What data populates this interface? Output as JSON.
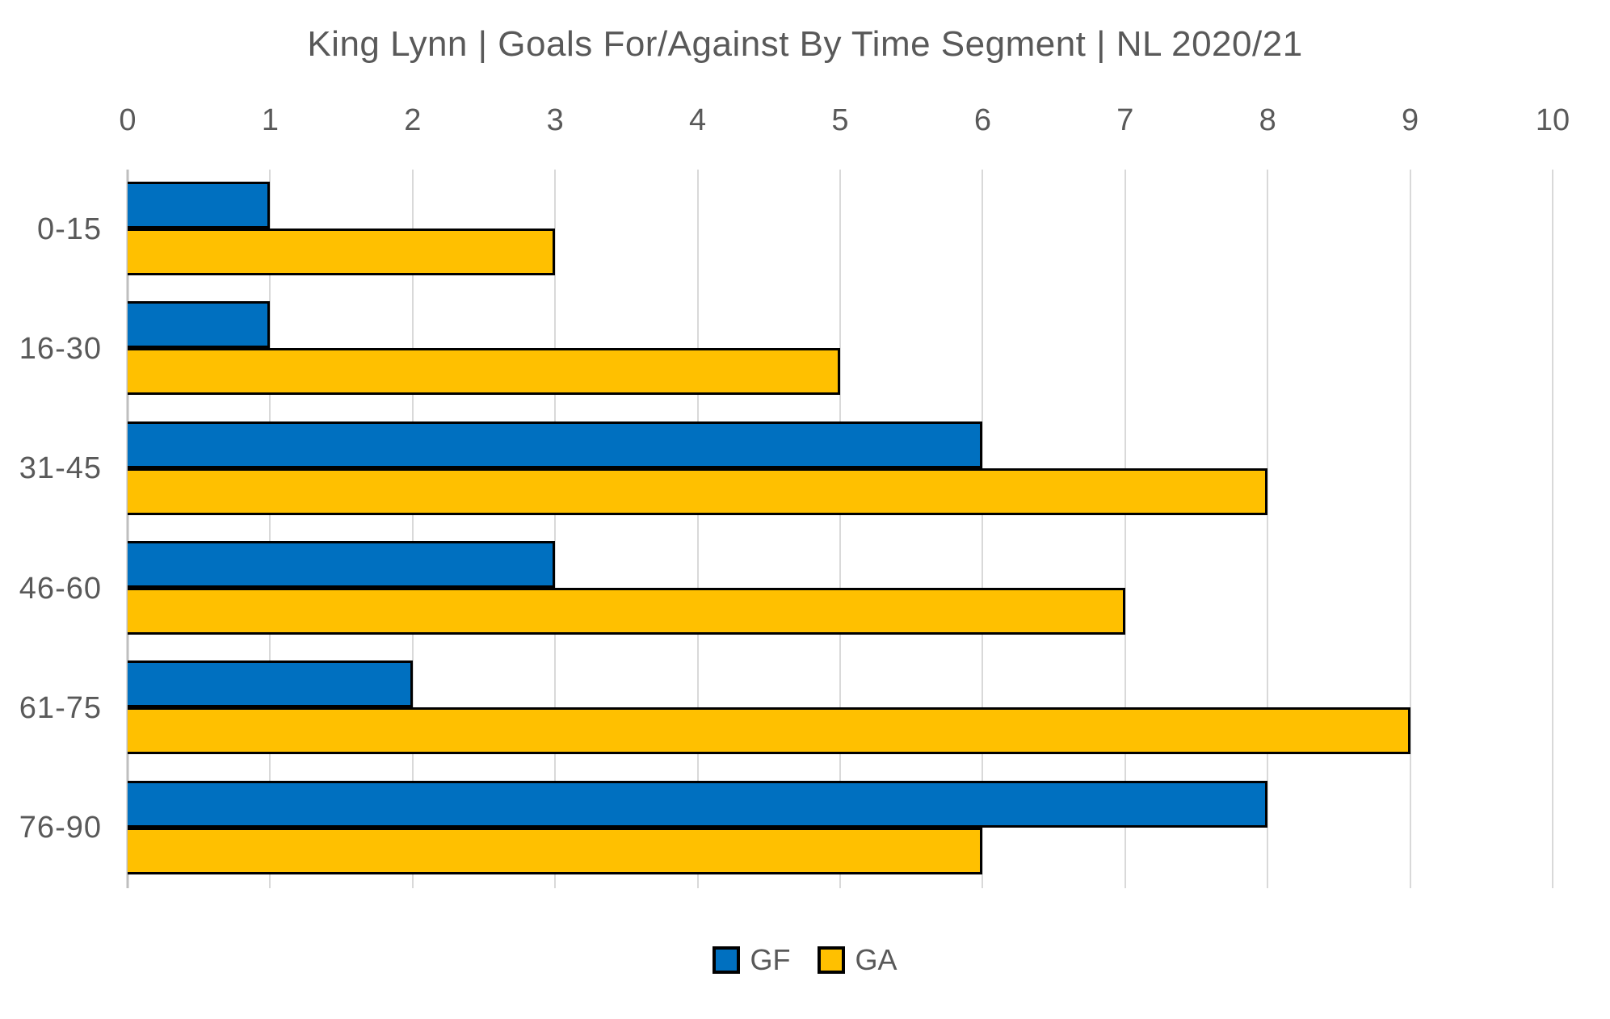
{
  "title": "King Lynn | Goals For/Against By Time Segment | NL 2020/21",
  "chart_data": {
    "type": "bar",
    "orientation": "horizontal",
    "title": "King Lynn | Goals For/Against By Time Segment | NL 2020/21",
    "categories": [
      "0-15",
      "16-30",
      "31-45",
      "46-60",
      "61-75",
      "76-90"
    ],
    "series": [
      {
        "name": "GF",
        "color": "#0070C0",
        "values": [
          1,
          1,
          6,
          3,
          2,
          8
        ]
      },
      {
        "name": "GA",
        "color": "#FFC000",
        "values": [
          3,
          5,
          8,
          7,
          9,
          6
        ]
      }
    ],
    "xlim": [
      0,
      10
    ],
    "xticks": [
      "0",
      "1",
      "2",
      "3",
      "4",
      "5",
      "6",
      "7",
      "8",
      "9",
      "10"
    ],
    "xlabel": "",
    "ylabel": "",
    "grid": "vertical",
    "axis_position": "top",
    "legend_position": "bottom",
    "bar_border_color": "#000000"
  },
  "colors": {
    "text": "#595959",
    "gridline": "#D9D9D9",
    "axis_line": "#BFBFBF",
    "background": "#FFFFFF"
  }
}
